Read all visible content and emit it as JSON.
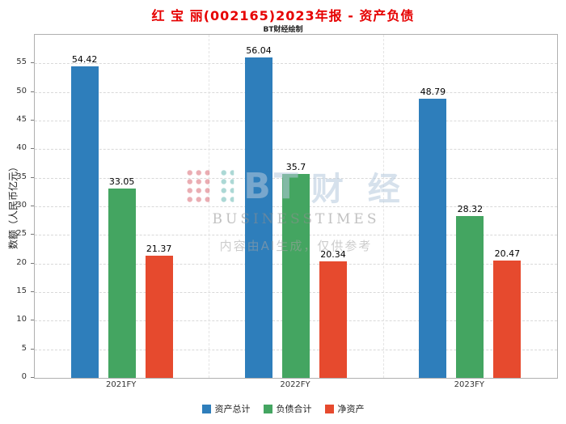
{
  "title": "红 宝 丽(002165)2023年报 - 资产负债",
  "subtitle": "BT财经绘制",
  "watermark": {
    "logo_bt": "BT",
    "logo_cn": "财 经",
    "logo_sub": "BUSINESSTIMES",
    "disclaimer": "内容由AI生成，仅供参考"
  },
  "chart_data": {
    "type": "bar",
    "title": "红 宝 丽(002165)2023年报 - 资产负债",
    "subtitle": "BT财经绘制",
    "categories": [
      "2021FY",
      "2022FY",
      "2023FY"
    ],
    "series": [
      {
        "name": "资产总计",
        "color": "#2e7ebb",
        "values": [
          54.42,
          56.04,
          48.79
        ]
      },
      {
        "name": "负债合计",
        "color": "#44a561",
        "values": [
          33.05,
          35.7,
          28.32
        ]
      },
      {
        "name": "净资产",
        "color": "#e64a2e",
        "values": [
          21.37,
          20.34,
          20.47
        ]
      }
    ],
    "xlabel": "",
    "ylabel": "数额（人民币亿元）",
    "ylim": [
      0,
      60
    ],
    "yticks": [
      0,
      5,
      10,
      15,
      20,
      25,
      30,
      35,
      40,
      45,
      50,
      55
    ],
    "grid": true,
    "legend_position": "bottom"
  }
}
